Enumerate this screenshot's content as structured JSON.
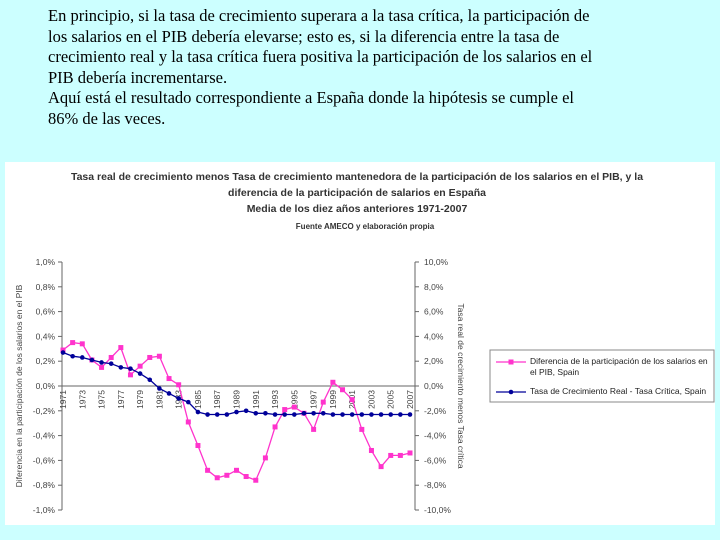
{
  "paragraph_lines": [
    "En principio, si la tasa de crecimiento superara a la tasa crítica, la participación de",
    "los salarios en el PIB debería elevarse; esto es, si la diferencia entre la tasa de",
    "crecimiento real y la tasa crítica fuera positiva la participación de los salarios en el",
    "PIB debería incrementarse.",
    "Aquí está el resultado correspondiente a España donde la hipótesis se cumple el",
    "86% de las veces."
  ],
  "chart_data": {
    "type": "line",
    "title_lines": [
      "Tasa real de crecimiento menos Tasa de crecimiento mantenedora de la participación de los salarios en el PIB, y la",
      "diferencia de la participación de salarios en España",
      "Media de los diez años anteriores 1971-2007"
    ],
    "source": "Fuente AMECO y elaboración propia",
    "y_label": "Diferencia en la participación de los salarios en el PIB",
    "y2_label": "Tasa real de crecimiento menos Tasa crítica",
    "categories": [
      "1971",
      null,
      "1973",
      null,
      "1975",
      null,
      "1977",
      null,
      "1979",
      null,
      "1981",
      null,
      "1983",
      null,
      "1985",
      null,
      "1987",
      null,
      "1989",
      null,
      "1991",
      null,
      "1993",
      null,
      "1995",
      null,
      "1997",
      null,
      "1999",
      null,
      "2001",
      null,
      "2003",
      null,
      "2005",
      null,
      "2007"
    ],
    "ylim": [
      -1.0,
      1.0
    ],
    "yticks": [
      {
        "value": 1.0,
        "label": "1,0%"
      },
      {
        "value": 0.8,
        "label": "0,8%"
      },
      {
        "value": 0.6,
        "label": "0,6%"
      },
      {
        "value": 0.4,
        "label": "0,4%"
      },
      {
        "value": 0.2,
        "label": "0,2%"
      },
      {
        "value": 0,
        "label": "0,0%"
      },
      {
        "value": -0.2,
        "label": "-0,2%"
      },
      {
        "value": -0.4,
        "label": "-0,4%"
      },
      {
        "value": -0.6,
        "label": "-0,6%"
      },
      {
        "value": -0.8,
        "label": "-0,8%"
      },
      {
        "value": -1.0,
        "label": "-1,0%"
      }
    ],
    "y2lim": [
      -10.0,
      10.0
    ],
    "y2ticks": [
      {
        "value": 10.0,
        "label": "10,0%"
      },
      {
        "value": 8.0,
        "label": "8,0%"
      },
      {
        "value": 6.0,
        "label": "6,0%"
      },
      {
        "value": 4.0,
        "label": "4,0%"
      },
      {
        "value": 2.0,
        "label": "2,0%"
      },
      {
        "value": 0,
        "label": "0,0%"
      },
      {
        "value": -2.0,
        "label": "-2,0%"
      },
      {
        "value": -4.0,
        "label": "-4,0%"
      },
      {
        "value": -6.0,
        "label": "-6,0%"
      },
      {
        "value": -8.0,
        "label": "-8,0%"
      },
      {
        "value": -10.0,
        "label": "-10,0%"
      }
    ],
    "series": [
      {
        "name": "Diferencia de la participación de los salarios en el PIB, Spain",
        "color": "#ff33cc",
        "marker": "square",
        "values": [
          0.29,
          0.35,
          0.34,
          0.21,
          0.15,
          0.23,
          0.31,
          0.09,
          0.16,
          0.23,
          0.24,
          0.06,
          0.01,
          -0.29,
          -0.48,
          -0.68,
          -0.74,
          -0.72,
          -0.68,
          -0.73,
          -0.76,
          -0.58,
          -0.33,
          -0.19,
          -0.17,
          -0.22,
          -0.35,
          -0.13,
          0.03,
          -0.03,
          -0.11,
          -0.35,
          -0.52,
          -0.65,
          -0.56,
          -0.56,
          -0.54
        ]
      },
      {
        "name": "Tasa de Crecimiento Real - Tasa Crítica, Spain",
        "color": "#000099",
        "marker": "circle",
        "axis": "y2",
        "values": [
          2.7,
          2.4,
          2.3,
          2.1,
          1.9,
          1.8,
          1.5,
          1.4,
          1.0,
          0.5,
          -0.2,
          -0.6,
          -1.0,
          -1.3,
          -2.1,
          -2.3,
          -2.3,
          -2.3,
          -2.1,
          -2.0,
          -2.2,
          -2.2,
          -2.3,
          -2.3,
          -2.3,
          -2.2,
          -2.2,
          -2.2,
          -2.3,
          -2.3,
          -2.3,
          -2.3,
          -2.3,
          -2.3,
          -2.3,
          -2.3,
          -2.3
        ]
      }
    ]
  }
}
